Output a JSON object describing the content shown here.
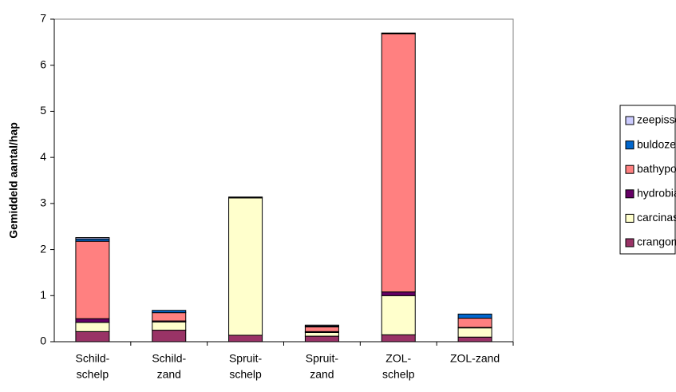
{
  "chart_data": {
    "type": "stacked_bar",
    "y_label": "Gemiddeld aantal/hap",
    "categories": [
      [
        "Schild-",
        "schelp"
      ],
      [
        "Schild-",
        "zand"
      ],
      [
        "Spruit-",
        "schelp"
      ],
      [
        "Spruit-",
        "zand"
      ],
      [
        "ZOL-",
        "schelp"
      ],
      [
        "ZOL-zand"
      ]
    ],
    "series": [
      {
        "name": "crangon",
        "color": "#993366",
        "values": [
          0.22,
          0.25,
          0.14,
          0.12,
          0.15,
          0.1
        ]
      },
      {
        "name": "carcinas",
        "color": "#FFFFCC",
        "values": [
          0.2,
          0.18,
          2.98,
          0.08,
          0.85,
          0.2
        ]
      },
      {
        "name": "hydrobia",
        "color": "#660066",
        "values": [
          0.08,
          0.02,
          0.01,
          0.02,
          0.08,
          0.01
        ]
      },
      {
        "name": "bathyporeia",
        "color": "#FF8080",
        "values": [
          1.68,
          0.18,
          0.01,
          0.1,
          5.6,
          0.2
        ]
      },
      {
        "name": "buldozerkkreeftje",
        "color": "#0066CC",
        "values": [
          0.05,
          0.05,
          0,
          0.02,
          0.01,
          0.09
        ]
      },
      {
        "name": "zeepissebed",
        "color": "#CCCCFF",
        "values": [
          0.03,
          0,
          0,
          0.02,
          0.01,
          0
        ]
      }
    ],
    "ylim": [
      0,
      7
    ],
    "yticks": [
      0,
      1,
      2,
      3,
      4,
      5,
      6,
      7
    ],
    "grid": false,
    "legend": "right"
  }
}
